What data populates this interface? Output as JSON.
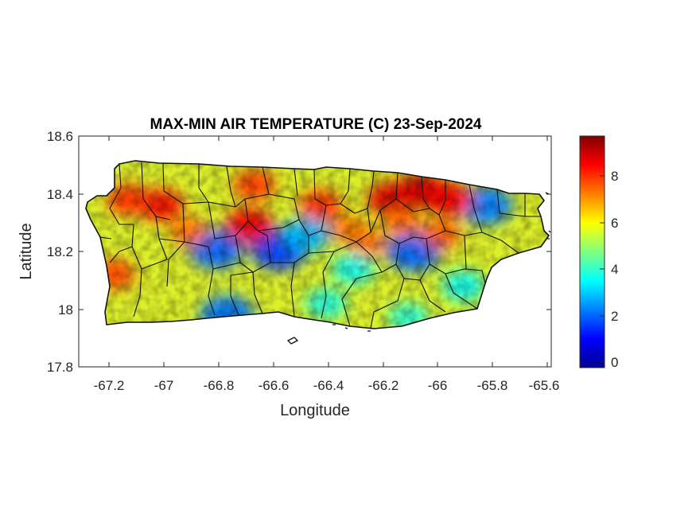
{
  "chart_data": {
    "type": "heatmap",
    "title": "MAX-MIN AIR TEMPERATURE (C) 23-Sep-2024",
    "xlabel": "Longitude",
    "ylabel": "Latitude",
    "xlim": [
      -67.3,
      -65.58
    ],
    "ylim": [
      17.8,
      18.6
    ],
    "xticks": [
      "-67.2",
      "-67",
      "-66.8",
      "-66.6",
      "-66.4",
      "-66.2",
      "-66",
      "-65.8",
      "-65.6"
    ],
    "yticks": [
      "18.6",
      "18.4",
      "18.2",
      "18",
      "17.8"
    ],
    "colorbar": {
      "colormap": "jet",
      "range": [
        -0.2,
        9.7
      ],
      "ticks": [
        "8",
        "6",
        "4",
        "2",
        "0"
      ]
    },
    "grid": false,
    "hotspots": [
      {
        "lon": -66.05,
        "lat": 18.41,
        "value": 9.0
      },
      {
        "lon": -66.16,
        "lat": 18.38,
        "value": 8.8
      },
      {
        "lon": -65.95,
        "lat": 18.38,
        "value": 8.4
      },
      {
        "lon": -67.0,
        "lat": 18.36,
        "value": 8.3
      },
      {
        "lon": -67.12,
        "lat": 18.38,
        "value": 8.0
      },
      {
        "lon": -66.68,
        "lat": 18.29,
        "value": 8.6
      },
      {
        "lon": -66.42,
        "lat": 18.36,
        "value": 8.0
      },
      {
        "lon": -66.66,
        "lat": 18.43,
        "value": 7.9
      },
      {
        "lon": -67.17,
        "lat": 18.12,
        "value": 7.8
      },
      {
        "lon": -66.9,
        "lat": 18.27,
        "value": 7.4
      },
      {
        "lon": -66.25,
        "lat": 18.23,
        "value": 7.4
      },
      {
        "lon": -65.98,
        "lat": 18.26,
        "value": 7.6
      },
      {
        "lon": -66.32,
        "lat": 18.28,
        "value": 7.3
      },
      {
        "lon": -66.12,
        "lat": 18.3,
        "value": 7.4
      }
    ],
    "coldspots": [
      {
        "lon": -66.57,
        "lat": 18.21,
        "value": 1.6
      },
      {
        "lon": -66.8,
        "lat": 18.21,
        "value": 2.0
      },
      {
        "lon": -66.08,
        "lat": 18.2,
        "value": 2.0
      },
      {
        "lon": -65.82,
        "lat": 18.36,
        "value": 2.2
      },
      {
        "lon": -66.47,
        "lat": 18.26,
        "value": 2.8
      },
      {
        "lon": -66.76,
        "lat": 17.98,
        "value": 2.2
      },
      {
        "lon": -66.3,
        "lat": 18.14,
        "value": 3.6
      },
      {
        "lon": -65.9,
        "lat": 18.08,
        "value": 3.6
      },
      {
        "lon": -66.4,
        "lat": 18.02,
        "value": 3.8
      },
      {
        "lon": -66.1,
        "lat": 17.97,
        "value": 3.9
      }
    ]
  }
}
